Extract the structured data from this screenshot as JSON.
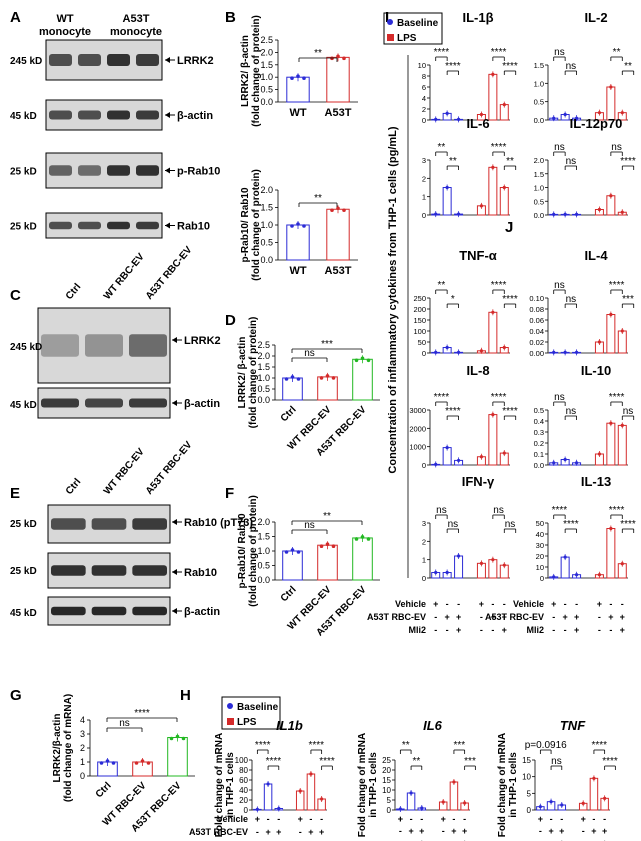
{
  "panels": {
    "A": "A",
    "B": "B",
    "C": "C",
    "D": "D",
    "E": "E",
    "F": "F",
    "G": "G",
    "H": "H",
    "I": "I",
    "J": "J"
  },
  "panelA": {
    "col1": "WT",
    "col1b": "monocyte",
    "col2": "A53T",
    "col2b": "monocyte",
    "kd": [
      "245 kD",
      "45 kD",
      "25 kD",
      "25 kD"
    ],
    "bands": [
      "LRRK2",
      "β-actin",
      "p-Rab10",
      "Rab10"
    ]
  },
  "panelC": {
    "cols": [
      "Ctrl",
      "WT RBC-EV",
      "A53T RBC-EV"
    ],
    "kd": [
      "245 kD",
      "45 kD"
    ],
    "bands": [
      "LRRK2",
      "β-actin"
    ]
  },
  "panelE": {
    "cols": [
      "Ctrl",
      "WT RBC-EV",
      "A53T RBC-EV"
    ],
    "kd": [
      "25 kD",
      "25 kD",
      "45 kD"
    ],
    "bands": [
      "Rab10 (pT73)",
      "Rab10",
      "β-actin"
    ]
  },
  "legend": {
    "baseline": "Baseline",
    "lps": "LPS"
  },
  "sig": {
    "ns": "ns",
    "s1": "*",
    "s2": "**",
    "s3": "***",
    "s4": "****",
    "p": "p=0.0916"
  },
  "treat": {
    "vehicle": "Vehicle",
    "a53t": "A53T RBC-EV",
    "mli2": "Mli2",
    "plus": "+",
    "minus": "-"
  },
  "chart_data": [
    {
      "type": "bar",
      "panel": "B1",
      "categories": [
        "WT",
        "A53T"
      ],
      "values": [
        1.0,
        1.8
      ],
      "ylabel": "LRRK2/ β-actin (fold change of protein)",
      "ylim": [
        0,
        2.5
      ],
      "yticks": [
        "0.0",
        "0.5",
        "1.0",
        "1.5",
        "2.0",
        "2.5"
      ],
      "colors": [
        "#2b2bd6",
        "#d42a2a"
      ]
    },
    {
      "type": "bar",
      "panel": "B2",
      "categories": [
        "WT",
        "A53T"
      ],
      "values": [
        1.0,
        1.45
      ],
      "ylabel": "p-Rab10/ Rab10 (fold change of protein)",
      "ylim": [
        0,
        2.0
      ],
      "yticks": [
        "0.0",
        "0.5",
        "1.0",
        "1.5",
        "2.0"
      ],
      "colors": [
        "#2b2bd6",
        "#d42a2a"
      ]
    },
    {
      "type": "bar",
      "panel": "D",
      "categories": [
        "Ctrl",
        "WT RBC-EV",
        "A53T RBC-EV"
      ],
      "values": [
        1.0,
        1.05,
        1.85
      ],
      "ylabel": "LRRK2/ β-actin (fold change of protein)",
      "ylim": [
        0,
        2.5
      ],
      "yticks": [
        "0.0",
        "0.5",
        "1.0",
        "1.5",
        "2.0",
        "2.5"
      ],
      "colors": [
        "#2b2bd6",
        "#d42a2a",
        "#22b822"
      ]
    },
    {
      "type": "bar",
      "panel": "F",
      "categories": [
        "Ctrl",
        "WT RBC-EV",
        "A53T RBC-EV"
      ],
      "values": [
        1.0,
        1.2,
        1.45
      ],
      "ylabel": "p-Rab10/ Rab10 (fold change of protein)",
      "ylim": [
        0,
        2.0
      ],
      "yticks": [
        "0.0",
        "0.5",
        "1.0",
        "1.5",
        "2.0"
      ],
      "colors": [
        "#2b2bd6",
        "#d42a2a",
        "#22b822"
      ]
    },
    {
      "type": "bar",
      "panel": "G",
      "categories": [
        "Ctrl",
        "WT RBC-EV",
        "A53T RBC-EV"
      ],
      "values": [
        1.0,
        1.0,
        2.75
      ],
      "ylabel": "LRRK2/β-actin (fold change of mRNA)",
      "ylim": [
        0,
        4
      ],
      "yticks": [
        "0",
        "1",
        "2",
        "3",
        "4"
      ],
      "colors": [
        "#2b2bd6",
        "#d42a2a",
        "#22b822"
      ]
    },
    {
      "type": "bar",
      "panel": "H1",
      "title": "IL1b",
      "ylabel": "Fold change of mRNA in THP-1 cells",
      "ylim": [
        0,
        100
      ],
      "yticks": [
        "0",
        "20",
        "40",
        "60",
        "80",
        "100"
      ],
      "baseline": [
        1,
        52,
        3
      ],
      "lps": [
        38,
        72,
        22
      ]
    },
    {
      "type": "bar",
      "panel": "H2",
      "title": "IL6",
      "ylabel": "Fold change of mRNA in THP-1 cells",
      "ylim": [
        0,
        25
      ],
      "yticks": [
        "0",
        "5",
        "10",
        "15",
        "20",
        "25"
      ],
      "baseline": [
        0.5,
        8.5,
        1
      ],
      "lps": [
        4,
        14,
        3.5
      ]
    },
    {
      "type": "bar",
      "panel": "H3",
      "title": "TNF",
      "ylabel": "Fold change of mRNA in THP-1 cells",
      "ylim": [
        0,
        15
      ],
      "yticks": [
        "0",
        "5",
        "10",
        "15"
      ],
      "baseline": [
        1,
        2.5,
        1.5
      ],
      "lps": [
        2,
        9.5,
        3.5
      ]
    },
    {
      "type": "bar",
      "panel": "IL-1β",
      "title": "IL-1β",
      "ylim": [
        0,
        10
      ],
      "yticks": [
        "0",
        "2",
        "4",
        "6",
        "8",
        "10"
      ],
      "baseline": [
        0.1,
        1.2,
        0.1
      ],
      "lps": [
        1.0,
        8.3,
        2.8
      ]
    },
    {
      "type": "bar",
      "panel": "IL-2",
      "title": "IL-2",
      "ylim": [
        0,
        1.5
      ],
      "yticks": [
        "0.0",
        "0.5",
        "1.0",
        "1.5"
      ],
      "baseline": [
        0.05,
        0.15,
        0.05
      ],
      "lps": [
        0.2,
        0.9,
        0.2
      ]
    },
    {
      "type": "bar",
      "panel": "IL-6",
      "title": "IL-6",
      "ylim": [
        0,
        3
      ],
      "yticks": [
        "0",
        "1",
        "2",
        "3"
      ],
      "baseline": [
        0.05,
        1.5,
        0.05
      ],
      "lps": [
        0.5,
        2.6,
        1.5
      ]
    },
    {
      "type": "bar",
      "panel": "IL-12p70",
      "title": "IL-12p70",
      "ylim": [
        0,
        2.0
      ],
      "yticks": [
        "0.0",
        "0.5",
        "1.0",
        "1.5",
        "2.0"
      ],
      "baseline": [
        0.02,
        0.02,
        0.02
      ],
      "lps": [
        0.2,
        0.7,
        0.1
      ]
    },
    {
      "type": "bar",
      "panel": "TNF-α",
      "title": "TNF-α",
      "ylim": [
        0,
        250
      ],
      "yticks": [
        "0",
        "50",
        "100",
        "150",
        "200",
        "250"
      ],
      "baseline": [
        1,
        25,
        3
      ],
      "lps": [
        10,
        185,
        25
      ]
    },
    {
      "type": "bar",
      "panel": "IL-4",
      "title": "IL-4",
      "ylim": [
        0,
        0.1
      ],
      "yticks": [
        "0.00",
        "0.02",
        "0.04",
        "0.06",
        "0.08",
        "0.10"
      ],
      "baseline": [
        0,
        0,
        0
      ],
      "lps": [
        0.02,
        0.07,
        0.04
      ]
    },
    {
      "type": "bar",
      "panel": "IL-8",
      "title": "IL-8",
      "ylim": [
        0,
        3000
      ],
      "yticks": [
        "0",
        "1000",
        "2000",
        "3000"
      ],
      "baseline": [
        30,
        950,
        250
      ],
      "lps": [
        450,
        2750,
        650
      ]
    },
    {
      "type": "bar",
      "panel": "IL-10",
      "title": "IL-10",
      "ylim": [
        0,
        0.5
      ],
      "yticks": [
        "0.0",
        "0.1",
        "0.2",
        "0.3",
        "0.4",
        "0.5"
      ],
      "baseline": [
        0.02,
        0.05,
        0.02
      ],
      "lps": [
        0.1,
        0.38,
        0.36
      ]
    },
    {
      "type": "bar",
      "panel": "IFN-γ",
      "title": "IFN-γ",
      "ylim": [
        0,
        3
      ],
      "yticks": [
        "0",
        "1",
        "2",
        "3"
      ],
      "baseline": [
        0.3,
        0.3,
        1.2
      ],
      "lps": [
        0.8,
        1.0,
        0.7
      ]
    },
    {
      "type": "bar",
      "panel": "IL-13",
      "title": "IL-13",
      "ylim": [
        0,
        50
      ],
      "yticks": [
        "0",
        "10",
        "20",
        "30",
        "40",
        "50"
      ],
      "baseline": [
        1,
        19,
        3
      ],
      "lps": [
        3,
        45,
        13
      ]
    }
  ],
  "axis": {
    "cats2": [
      "WT",
      "A53T"
    ],
    "cats3": [
      "Ctrl",
      "WT RBC-EV",
      "A53T RBC-EV"
    ],
    "ylabelI": "Concentration of inflammatory cytokines from THP-1 cells (pg/mL)"
  }
}
